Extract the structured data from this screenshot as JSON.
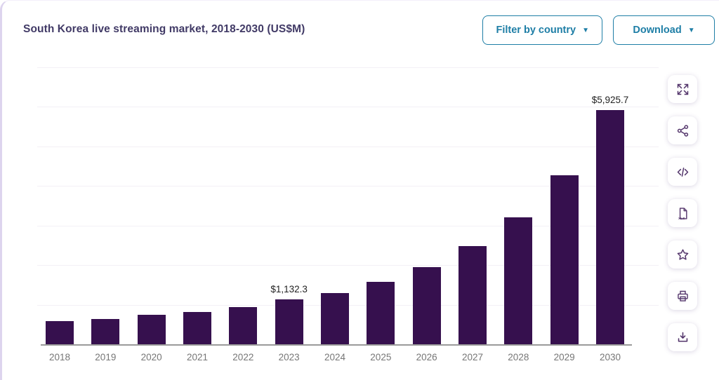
{
  "header": {
    "title": "South Korea live streaming market, 2018-2030 (US$M)",
    "filter_button": "Filter by country",
    "download_button": "Download",
    "caret": "▼"
  },
  "toolbar": {
    "items": [
      {
        "icon": "expand-icon"
      },
      {
        "icon": "share-icon"
      },
      {
        "icon": "embed-code-icon"
      },
      {
        "icon": "xls-file-icon"
      },
      {
        "icon": "star-icon"
      },
      {
        "icon": "print-icon"
      },
      {
        "icon": "download-image-icon"
      }
    ]
  },
  "chart_data": {
    "type": "bar",
    "title": "South Korea live streaming market, 2018-2030 (US$M)",
    "categories": [
      "2018",
      "2019",
      "2020",
      "2021",
      "2022",
      "2023",
      "2024",
      "2025",
      "2026",
      "2027",
      "2028",
      "2029",
      "2030"
    ],
    "values": [
      585,
      640,
      745,
      815,
      940,
      1132.3,
      1295,
      1580,
      1950,
      2480,
      3210,
      4270,
      5925.7
    ],
    "data_labels": [
      "",
      "",
      "",
      "",
      "",
      "$1,132.3",
      "",
      "",
      "",
      "",
      "",
      "",
      "$5,925.7"
    ],
    "xlabel": "",
    "ylabel": "",
    "ylim": [
      0,
      7000
    ],
    "gridline_step": 1000,
    "grid": true,
    "legend_position": "none",
    "bar_color": "#36104e",
    "note": "values without data labels are estimated from bar heights"
  },
  "colors": {
    "bar": "#36104e",
    "title_text": "#413a66",
    "button_accent": "#1e7ea6",
    "axis_label": "#767676",
    "icon_purple": "#53356b"
  }
}
